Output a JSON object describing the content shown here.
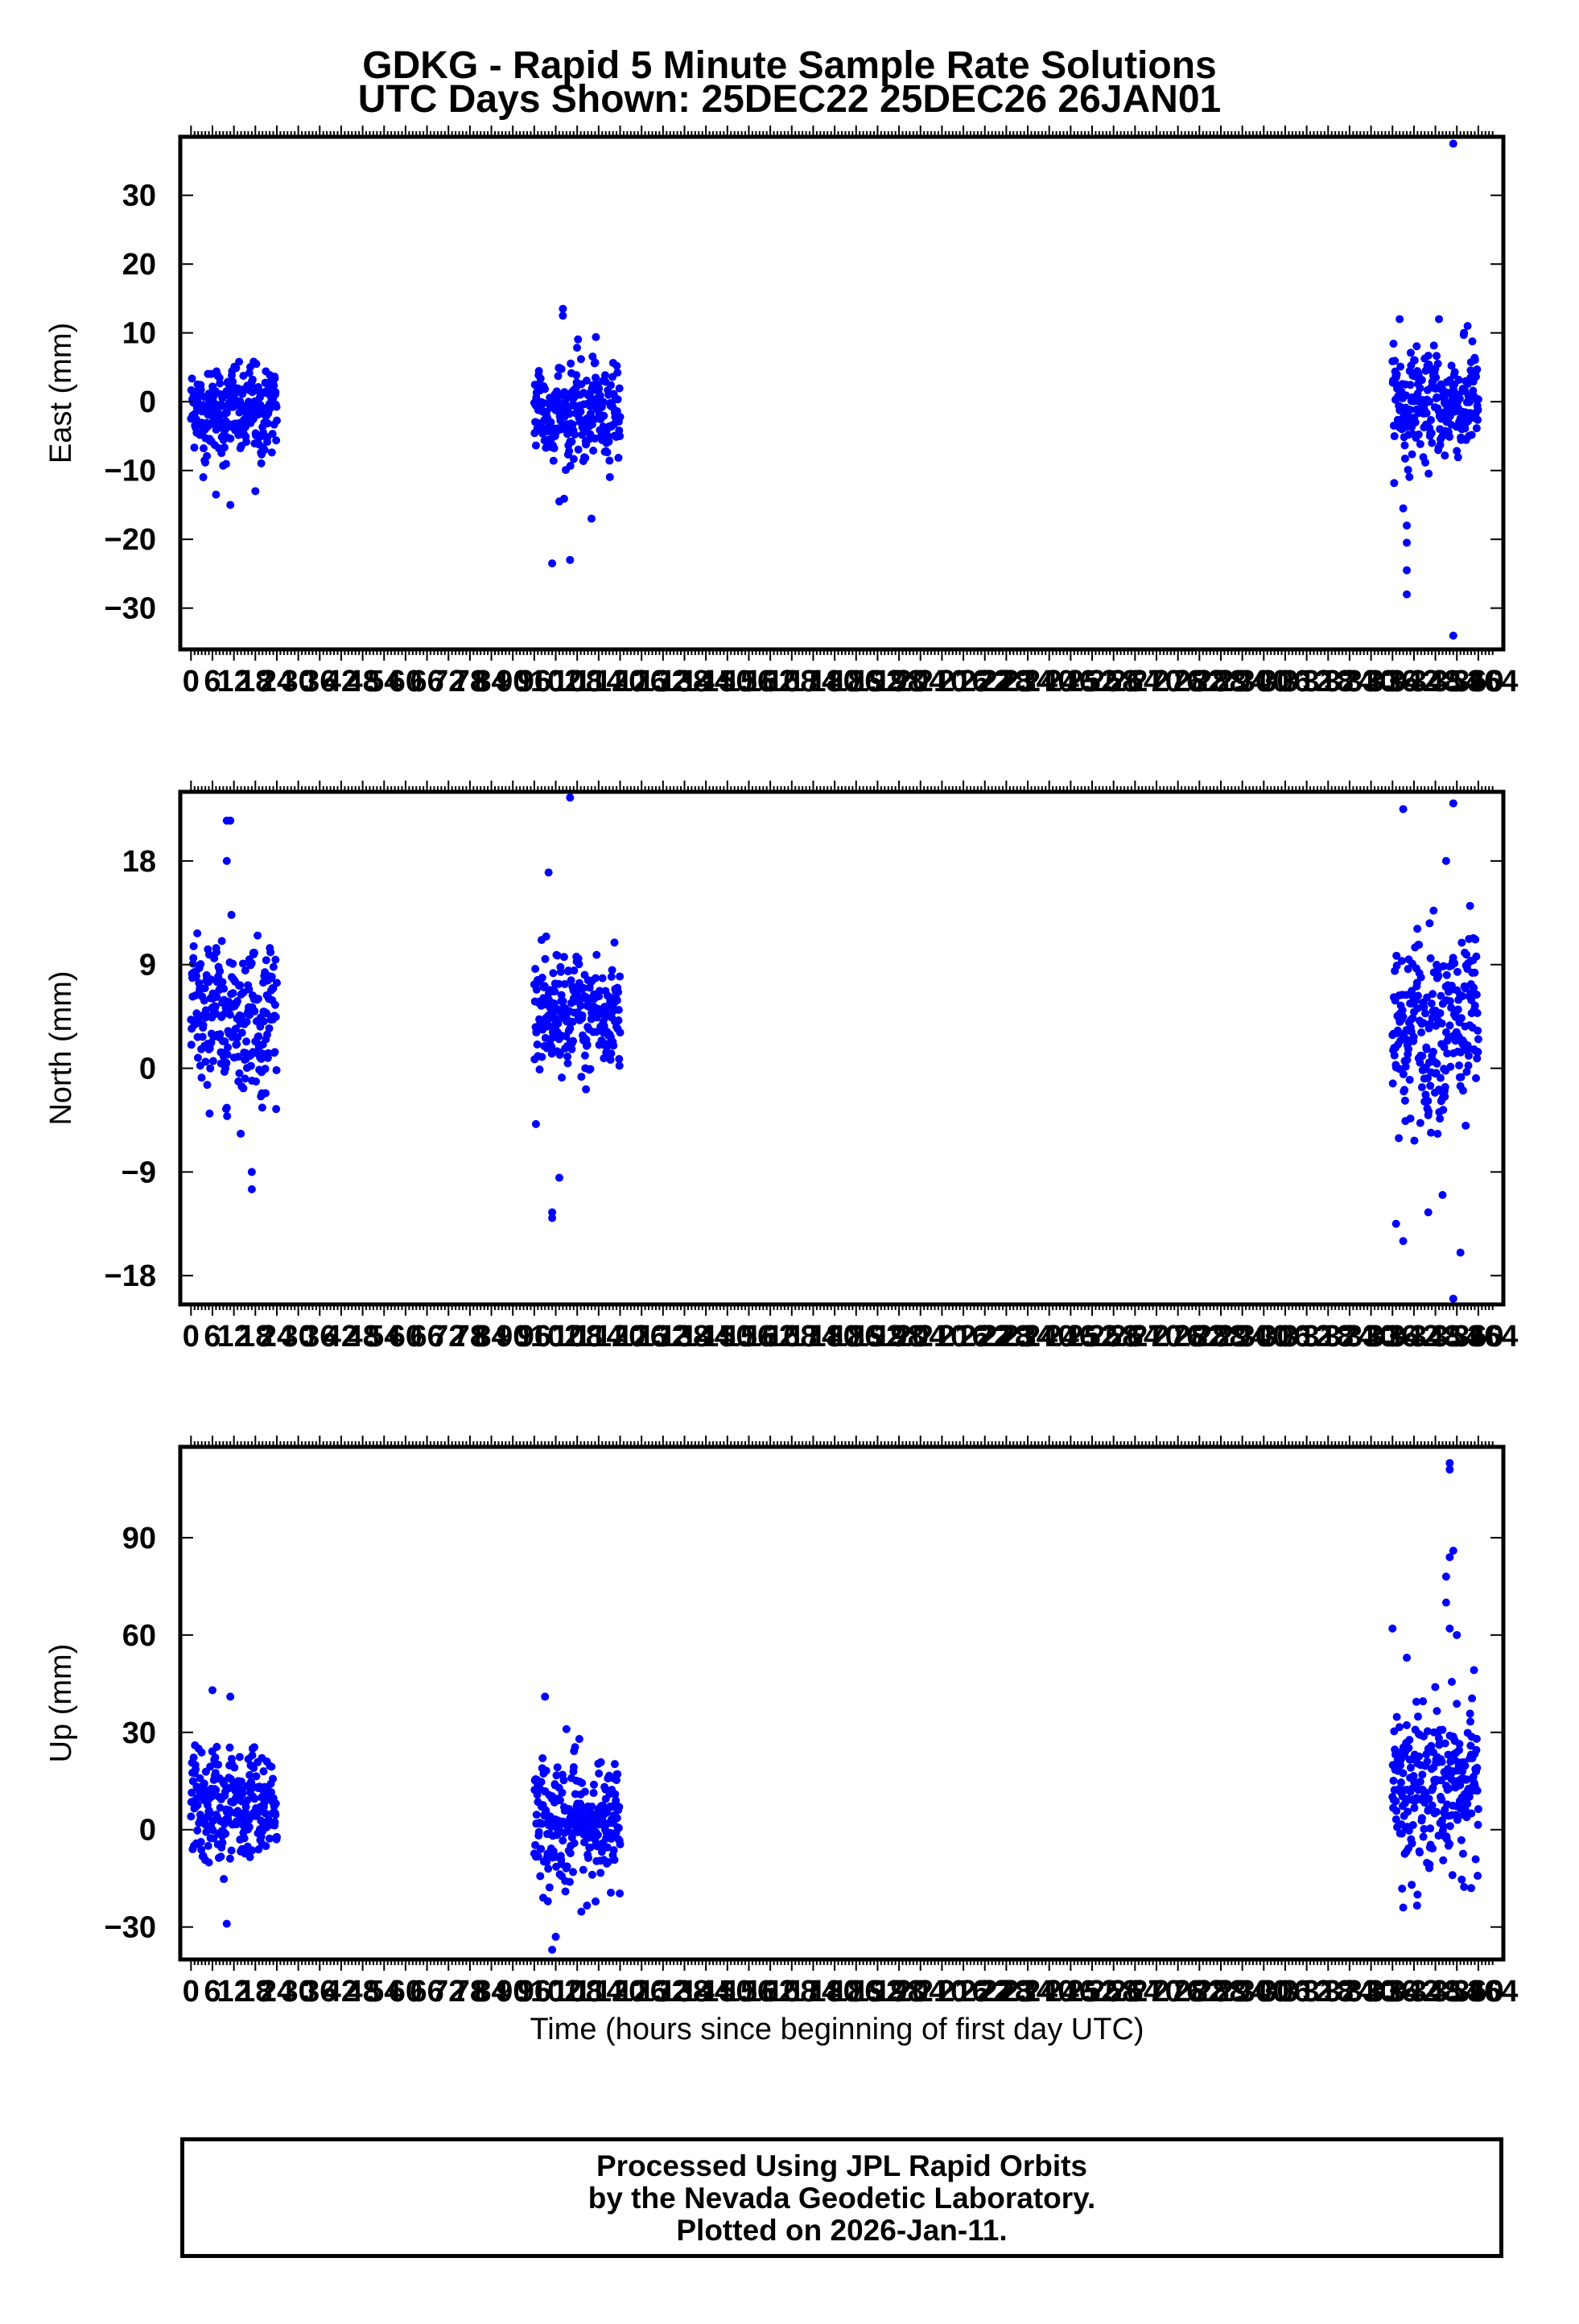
{
  "title": {
    "line1": "GDKG - Rapid 5 Minute Sample Rate Solutions",
    "line2": "UTC Days Shown:  25DEC22 25DEC26 26JAN01"
  },
  "xlabel": "Time (hours since beginning of first day UTC)",
  "footer": {
    "line1": "Processed Using JPL Rapid Orbits",
    "line2": "by the Nevada Geodetic Laboratory.",
    "line3": "Plotted on 2026-Jan-11."
  },
  "colors": {
    "points": "#0000ff",
    "axes": "#000000"
  },
  "chart_data": [
    {
      "type": "scatter",
      "ylabel": "East (mm)",
      "xlim": [
        -3,
        367
      ],
      "ylim": [
        -36,
        38.5
      ],
      "yticks": [
        -30,
        -20,
        -10,
        0,
        10,
        20,
        30
      ],
      "xticks": [
        0,
        6,
        12,
        18,
        24,
        30,
        36,
        42,
        48,
        54,
        60,
        66,
        72,
        78,
        84,
        90,
        96,
        102,
        108,
        114,
        120,
        126,
        132,
        138,
        144,
        150,
        156,
        162,
        168,
        174,
        180,
        186,
        192,
        198,
        204,
        210,
        216,
        222,
        228,
        234,
        240,
        246,
        252,
        258,
        264,
        270,
        276,
        282,
        288,
        294,
        300,
        306,
        312,
        318,
        324,
        330,
        336,
        342,
        348,
        354,
        360,
        364
      ],
      "xticklabels": [
        "0",
        "6",
        "12",
        "18",
        "24",
        "30",
        "36",
        "42",
        "48",
        "54",
        "60",
        "66",
        "72",
        "78",
        "84",
        "90",
        "96",
        "102",
        "108",
        "114",
        "120",
        "126",
        "132",
        "138",
        "144",
        "150",
        "156",
        "162",
        "168",
        "174",
        "180",
        "186",
        "192",
        "198",
        "204",
        "210",
        "216",
        "222",
        "228",
        "234",
        "240",
        "246",
        "252",
        "258",
        "264",
        "270",
        "276",
        "282",
        "288",
        "294",
        "300",
        "306",
        "312",
        "318",
        "324",
        "330",
        "336",
        "342",
        "348",
        "354",
        "360",
        "364"
      ],
      "grid": false,
      "clusters": [
        {
          "x_start": 0,
          "x_end": 24,
          "center": -1.5,
          "spread": 4.2
        },
        {
          "x_start": 96,
          "x_end": 120,
          "center": -1.5,
          "spread": 4.5
        },
        {
          "x_start": 336,
          "x_end": 360,
          "center": -0.5,
          "spread": 4.8
        }
      ],
      "outliers": [
        [
          11,
          -15
        ],
        [
          7,
          -13.5
        ],
        [
          18,
          -13
        ],
        [
          101,
          -23.5
        ],
        [
          106,
          -23
        ],
        [
          103,
          -14.5
        ],
        [
          104,
          13.5
        ],
        [
          104,
          12.5
        ],
        [
          112,
          -17
        ],
        [
          340,
          -28
        ],
        [
          340,
          -24.5
        ],
        [
          340,
          -20.5
        ],
        [
          340,
          -18
        ],
        [
          339,
          -15.5
        ],
        [
          353,
          -34
        ],
        [
          353,
          37.5
        ],
        [
          338,
          12
        ],
        [
          349,
          12
        ],
        [
          356,
          10
        ],
        [
          357,
          11
        ]
      ]
    },
    {
      "type": "scatter",
      "ylabel": "North (mm)",
      "xlim": [
        -3,
        367
      ],
      "ylim": [
        -20.5,
        24
      ],
      "yticks": [
        -18,
        -9,
        0,
        9,
        18
      ],
      "xticks": [
        0,
        6,
        12,
        18,
        24,
        30,
        36,
        42,
        48,
        54,
        60,
        66,
        72,
        78,
        84,
        90,
        96,
        102,
        108,
        114,
        120,
        126,
        132,
        138,
        144,
        150,
        156,
        162,
        168,
        174,
        180,
        186,
        192,
        198,
        204,
        210,
        216,
        222,
        228,
        234,
        240,
        246,
        252,
        258,
        264,
        270,
        276,
        282,
        288,
        294,
        300,
        306,
        312,
        318,
        324,
        330,
        336,
        342,
        348,
        354,
        360,
        364
      ],
      "xticklabels": [
        "0",
        "6",
        "12",
        "18",
        "24",
        "30",
        "36",
        "42",
        "48",
        "54",
        "60",
        "66",
        "72",
        "78",
        "84",
        "90",
        "96",
        "102",
        "108",
        "114",
        "120",
        "126",
        "132",
        "138",
        "144",
        "150",
        "156",
        "162",
        "168",
        "174",
        "180",
        "186",
        "192",
        "198",
        "204",
        "210",
        "216",
        "222",
        "228",
        "234",
        "240",
        "246",
        "252",
        "258",
        "264",
        "270",
        "276",
        "282",
        "288",
        "294",
        "300",
        "306",
        "312",
        "318",
        "324",
        "330",
        "336",
        "342",
        "348",
        "354",
        "360",
        "364"
      ],
      "grid": false,
      "clusters": [
        {
          "x_start": 0,
          "x_end": 24,
          "center": 4.5,
          "spread": 4.2
        },
        {
          "x_start": 96,
          "x_end": 120,
          "center": 4.5,
          "spread": 3.3
        },
        {
          "x_start": 336,
          "x_end": 360,
          "center": 3.5,
          "spread": 5.2
        }
      ],
      "outliers": [
        [
          10,
          21.5
        ],
        [
          11,
          21.5
        ],
        [
          10,
          18
        ],
        [
          17,
          -10.5
        ],
        [
          17,
          -9
        ],
        [
          101,
          -12.5
        ],
        [
          101,
          -13
        ],
        [
          103,
          -9.5
        ],
        [
          100,
          17
        ],
        [
          106,
          23.5
        ],
        [
          339,
          22.5
        ],
        [
          353,
          23
        ],
        [
          355,
          -16
        ],
        [
          339,
          -15
        ],
        [
          353,
          -20
        ],
        [
          350,
          -11
        ],
        [
          351,
          18
        ],
        [
          346,
          -12.5
        ],
        [
          337,
          -13.5
        ]
      ]
    },
    {
      "type": "scatter",
      "ylabel": "Up (mm)",
      "xlim": [
        -3,
        367
      ],
      "ylim": [
        -40,
        118
      ],
      "yticks": [
        -30,
        0,
        30,
        60,
        90
      ],
      "xticks": [
        0,
        6,
        12,
        18,
        24,
        30,
        36,
        42,
        48,
        54,
        60,
        66,
        72,
        78,
        84,
        90,
        96,
        102,
        108,
        114,
        120,
        126,
        132,
        138,
        144,
        150,
        156,
        162,
        168,
        174,
        180,
        186,
        192,
        198,
        204,
        210,
        216,
        222,
        228,
        234,
        240,
        246,
        252,
        258,
        264,
        270,
        276,
        282,
        288,
        294,
        300,
        306,
        312,
        318,
        324,
        330,
        336,
        342,
        348,
        354,
        360,
        364
      ],
      "xticklabels": [
        "0",
        "6",
        "12",
        "18",
        "24",
        "30",
        "36",
        "42",
        "48",
        "54",
        "60",
        "66",
        "72",
        "78",
        "84",
        "90",
        "96",
        "102",
        "108",
        "114",
        "120",
        "126",
        "132",
        "138",
        "144",
        "150",
        "156",
        "162",
        "168",
        "174",
        "180",
        "186",
        "192",
        "198",
        "204",
        "210",
        "216",
        "222",
        "228",
        "234",
        "240",
        "246",
        "252",
        "258",
        "264",
        "270",
        "276",
        "282",
        "288",
        "294",
        "300",
        "306",
        "312",
        "318",
        "324",
        "330",
        "336",
        "342",
        "348",
        "354",
        "360",
        "364"
      ],
      "grid": false,
      "clusters": [
        {
          "x_start": 0,
          "x_end": 24,
          "center": 7,
          "spread": 11
        },
        {
          "x_start": 96,
          "x_end": 120,
          "center": 2,
          "spread": 12
        },
        {
          "x_start": 336,
          "x_end": 360,
          "center": 14,
          "spread": 15
        }
      ],
      "outliers": [
        [
          6,
          43
        ],
        [
          11,
          41
        ],
        [
          10,
          -29
        ],
        [
          101,
          -37
        ],
        [
          102,
          -33
        ],
        [
          99,
          41
        ],
        [
          105,
          31
        ],
        [
          336,
          62
        ],
        [
          340,
          53
        ],
        [
          339,
          -24
        ],
        [
          343,
          -20
        ],
        [
          352,
          113
        ],
        [
          352,
          111
        ],
        [
          353,
          86
        ],
        [
          352,
          84
        ],
        [
          351,
          78
        ],
        [
          351,
          70
        ],
        [
          352,
          62
        ],
        [
          354,
          60
        ],
        [
          358,
          -18
        ]
      ]
    }
  ]
}
